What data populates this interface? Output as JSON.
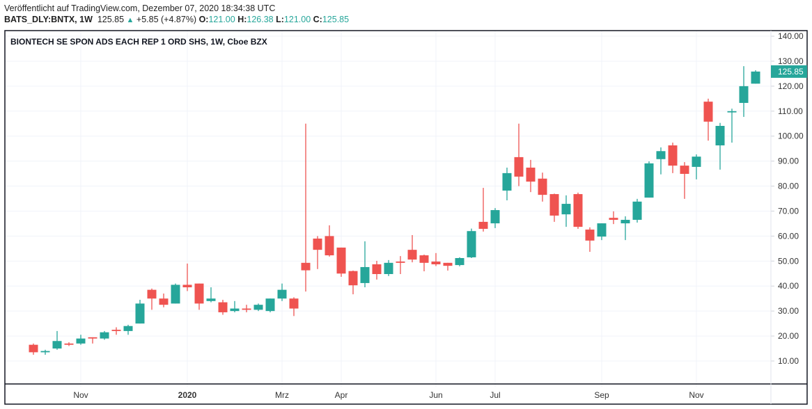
{
  "header": {
    "published": "Veröffentlicht auf TradingView.com, Dezember 07, 2020 18:34:38 UTC",
    "symbol": "BATS_DLY:BNTX, 1W",
    "last": "125.85",
    "change": "+5.85 (+4.87%)",
    "o_label": "O:",
    "o": "121.00",
    "h_label": "H:",
    "h": "126.38",
    "l_label": "L:",
    "l": "121.00",
    "c_label": "C:",
    "c": "125.85"
  },
  "colors": {
    "up": "#26a69a",
    "down": "#ef5350",
    "grid": "#f0f3fa"
  },
  "chart_data": {
    "type": "candlestick",
    "title": "BIONTECH SE SPON ADS EACH REP 1 ORD SHS, 1W, Cboe BZX",
    "ylim": [
      5,
      142
    ],
    "yticks": [
      "10.00",
      "20.00",
      "30.00",
      "40.00",
      "50.00",
      "60.00",
      "70.00",
      "80.00",
      "90.00",
      "100.00",
      "110.00",
      "120.00",
      "130.00",
      "140.00"
    ],
    "last_price_label": "125.85",
    "xticks": [
      {
        "index": 4,
        "label": "Nov",
        "bold": false
      },
      {
        "index": 13,
        "label": "2020",
        "bold": true
      },
      {
        "index": 21,
        "label": "Mrz",
        "bold": false
      },
      {
        "index": 26,
        "label": "Apr",
        "bold": false
      },
      {
        "index": 34,
        "label": "Jun",
        "bold": false
      },
      {
        "index": 39,
        "label": "Jul",
        "bold": false
      },
      {
        "index": 48,
        "label": "Sep",
        "bold": false
      },
      {
        "index": 56,
        "label": "Nov",
        "bold": false
      }
    ],
    "ohlc": [
      [
        16.5,
        17,
        12.5,
        13.5
      ],
      [
        13.5,
        14.5,
        12.5,
        14
      ],
      [
        15,
        22,
        14.5,
        18
      ],
      [
        17,
        17.5,
        16,
        16.5
      ],
      [
        17,
        20.5,
        16.5,
        19
      ],
      [
        19.5,
        19.5,
        17,
        19
      ],
      [
        19,
        22,
        18.5,
        21.5
      ],
      [
        22.5,
        23.5,
        20.5,
        22
      ],
      [
        22,
        24.5,
        20.5,
        24
      ],
      [
        25,
        34.5,
        25,
        33
      ],
      [
        38.5,
        39,
        30.5,
        35
      ],
      [
        35,
        37,
        31.5,
        32.5
      ],
      [
        33,
        41,
        33,
        40.5
      ],
      [
        40.5,
        49,
        38,
        39.5
      ],
      [
        41,
        41,
        30.5,
        33
      ],
      [
        34,
        39.5,
        33.5,
        35
      ],
      [
        33.5,
        34.5,
        28.5,
        29.5
      ],
      [
        30,
        34,
        29.5,
        31
      ],
      [
        31,
        32.5,
        29.5,
        30.5
      ],
      [
        30.5,
        33,
        30,
        32.5
      ],
      [
        30,
        35,
        29.5,
        35
      ],
      [
        35,
        41,
        34,
        38.5
      ],
      [
        35,
        35.5,
        28,
        31
      ],
      [
        49.3,
        105,
        37.8,
        46.3
      ],
      [
        59,
        60,
        46.8,
        54.5
      ],
      [
        60,
        64.3,
        51.8,
        52.3
      ],
      [
        55.4,
        55.4,
        43.7,
        45
      ],
      [
        46,
        46.2,
        36.7,
        40.3
      ],
      [
        41.2,
        57.9,
        39.5,
        47.6
      ],
      [
        48.7,
        50.1,
        42.6,
        44.8
      ],
      [
        44.8,
        50.4,
        44,
        49.3
      ],
      [
        49.8,
        52,
        44.8,
        49.3
      ],
      [
        54.5,
        60.4,
        49.5,
        50.6
      ],
      [
        52.3,
        52.6,
        45.9,
        49.3
      ],
      [
        49.8,
        53.2,
        48,
        48.7
      ],
      [
        49.3,
        49.3,
        46.2,
        48.1
      ],
      [
        48.4,
        51.5,
        47.9,
        51.2
      ],
      [
        51.5,
        63,
        51.2,
        62
      ],
      [
        65.7,
        79.3,
        61.8,
        62.9
      ],
      [
        65.1,
        71.2,
        63.2,
        70.4
      ],
      [
        78.2,
        87.4,
        74.3,
        85.2
      ],
      [
        91.6,
        105,
        80,
        83.8
      ],
      [
        87.4,
        90.5,
        77.6,
        81.8
      ],
      [
        83,
        85.4,
        73.8,
        76.5
      ],
      [
        76.8,
        77,
        65.7,
        68.2
      ],
      [
        68.7,
        76.3,
        63.7,
        72.9
      ],
      [
        76.8,
        77.4,
        62.9,
        63.7
      ],
      [
        62.6,
        63.5,
        53.7,
        58.2
      ],
      [
        59.8,
        65.1,
        58.4,
        65.1
      ],
      [
        67.3,
        69.9,
        64.8,
        66.5
      ],
      [
        65.1,
        67.9,
        58.4,
        66.5
      ],
      [
        66.5,
        74.9,
        65.4,
        73.8
      ],
      [
        75.4,
        89.9,
        75.4,
        89.1
      ],
      [
        90.8,
        95.5,
        84.7,
        94
      ],
      [
        96.3,
        97.4,
        85.2,
        88.2
      ],
      [
        88.2,
        89.6,
        74.9,
        84.9
      ],
      [
        87.7,
        92.7,
        82.7,
        91.8
      ],
      [
        113.8,
        115,
        98.2,
        105.8
      ],
      [
        96.3,
        105.3,
        86.6,
        104.1
      ],
      [
        109.5,
        111,
        97.4,
        110
      ],
      [
        113.3,
        128,
        107.7,
        120
      ],
      [
        121,
        126.38,
        121,
        125.85
      ]
    ]
  }
}
